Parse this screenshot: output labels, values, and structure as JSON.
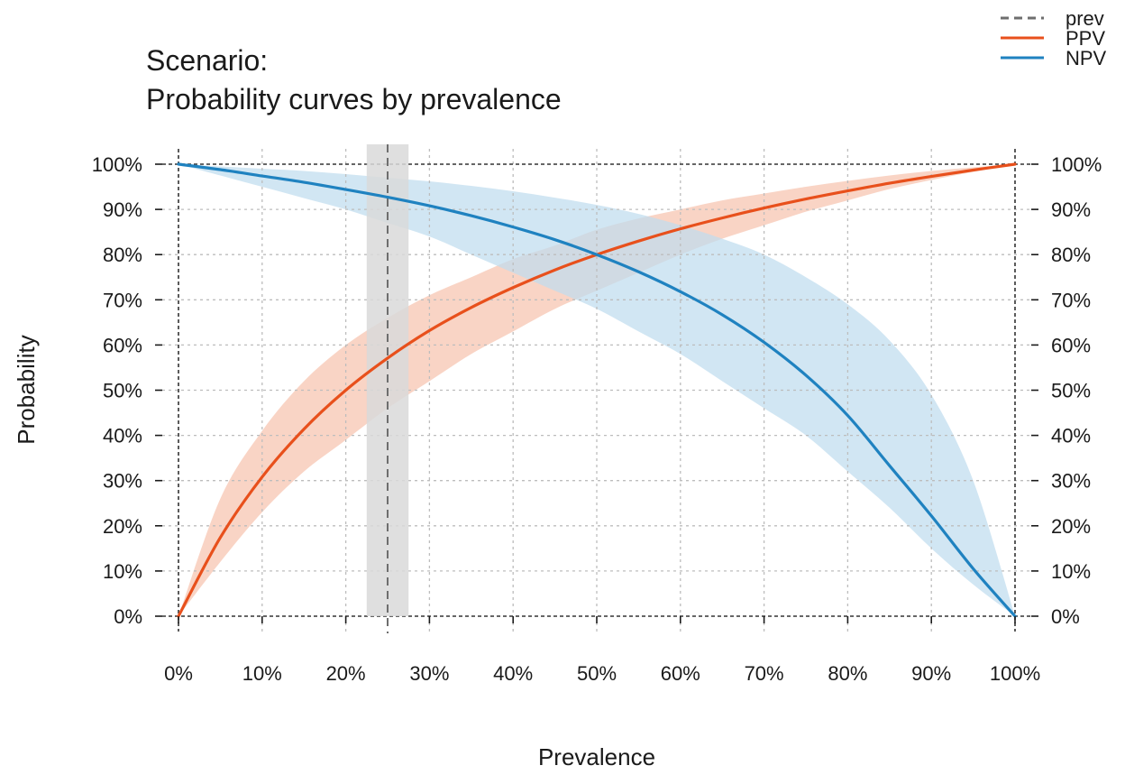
{
  "chart_data": {
    "type": "line",
    "title_line1": "Scenario:",
    "title_line2": "Probability curves by prevalence",
    "xlabel": "Prevalence",
    "ylabel": "Probability",
    "xlim": [
      0,
      1
    ],
    "ylim": [
      0,
      1
    ],
    "x_ticks": [
      "0%",
      "10%",
      "20%",
      "30%",
      "40%",
      "50%",
      "60%",
      "70%",
      "80%",
      "90%",
      "100%"
    ],
    "y_ticks": [
      "0%",
      "10%",
      "20%",
      "30%",
      "40%",
      "50%",
      "60%",
      "70%",
      "80%",
      "90%",
      "100%"
    ],
    "grid": true,
    "legend_position": "top-right",
    "prevalence": {
      "name": "prev",
      "value": 0.25,
      "band": [
        0.225,
        0.275
      ],
      "color": "#6e6e6e",
      "band_color": "#d9d9d9"
    },
    "series": [
      {
        "name": "PPV",
        "color": "#E8501C",
        "band_color": "#F7C3AF",
        "x": [
          0,
          0.05,
          0.1,
          0.15,
          0.2,
          0.25,
          0.3,
          0.35,
          0.4,
          0.45,
          0.5,
          0.55,
          0.6,
          0.65,
          0.7,
          0.75,
          0.8,
          0.85,
          0.9,
          0.95,
          1
        ],
        "values": [
          0,
          0.174,
          0.308,
          0.414,
          0.5,
          0.571,
          0.632,
          0.683,
          0.727,
          0.766,
          0.8,
          0.83,
          0.857,
          0.881,
          0.903,
          0.923,
          0.941,
          0.958,
          0.973,
          0.987,
          1
        ],
        "lower": [
          0,
          0.12,
          0.23,
          0.32,
          0.39,
          0.46,
          0.52,
          0.58,
          0.63,
          0.68,
          0.72,
          0.76,
          0.8,
          0.835,
          0.865,
          0.895,
          0.92,
          0.945,
          0.965,
          0.983,
          1
        ],
        "upper": [
          0,
          0.26,
          0.41,
          0.52,
          0.6,
          0.66,
          0.71,
          0.75,
          0.79,
          0.82,
          0.855,
          0.88,
          0.9,
          0.92,
          0.935,
          0.95,
          0.963,
          0.975,
          0.985,
          0.993,
          1
        ]
      },
      {
        "name": "NPV",
        "color": "#1F82C0",
        "band_color": "#BFDCEE",
        "x": [
          0,
          0.05,
          0.1,
          0.15,
          0.2,
          0.25,
          0.3,
          0.35,
          0.4,
          0.45,
          0.5,
          0.55,
          0.6,
          0.65,
          0.7,
          0.75,
          0.8,
          0.85,
          0.9,
          0.95,
          1
        ],
        "values": [
          1,
          0.988,
          0.974,
          0.96,
          0.944,
          0.927,
          0.908,
          0.886,
          0.861,
          0.833,
          0.8,
          0.762,
          0.718,
          0.667,
          0.606,
          0.533,
          0.444,
          0.333,
          0.222,
          0.105,
          0
        ],
        "lower": [
          1,
          0.975,
          0.95,
          0.925,
          0.9,
          0.87,
          0.84,
          0.8,
          0.76,
          0.72,
          0.68,
          0.63,
          0.58,
          0.52,
          0.46,
          0.4,
          0.32,
          0.24,
          0.15,
          0.07,
          0
        ],
        "upper": [
          1,
          0.995,
          0.99,
          0.985,
          0.978,
          0.97,
          0.962,
          0.952,
          0.94,
          0.926,
          0.91,
          0.89,
          0.865,
          0.835,
          0.8,
          0.75,
          0.69,
          0.61,
          0.49,
          0.3,
          0
        ]
      }
    ]
  }
}
